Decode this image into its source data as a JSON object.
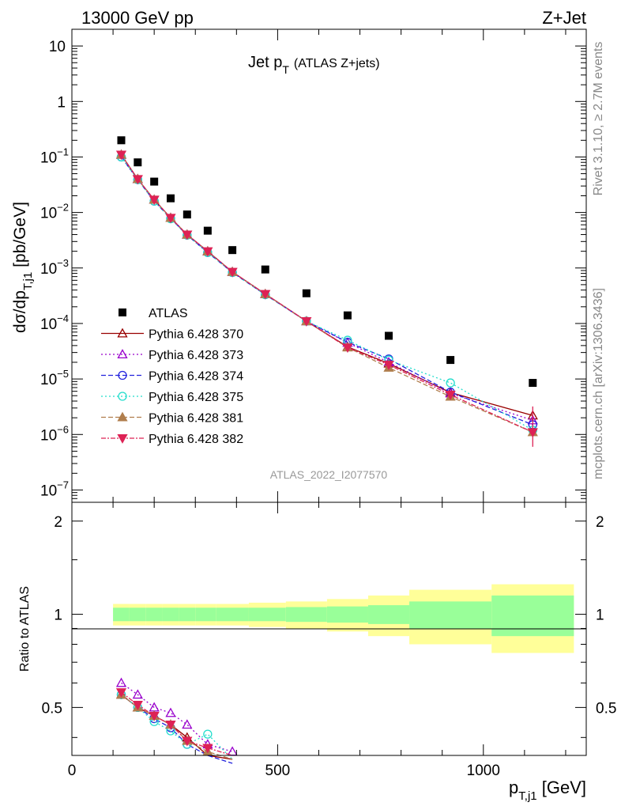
{
  "header": {
    "left": "13000 GeV pp",
    "right": "Z+Jet"
  },
  "side_labels": {
    "top": "Rivet 3.1.10, ≥ 2.7M events",
    "bottom": "mcplots.cern.ch [arXiv:1306.3436]"
  },
  "main_panel": {
    "title": "Jet p",
    "title_sub": "T",
    "title_extra": "(ATLAS Z+jets)",
    "ylabel_pre": "dσ/dp",
    "ylabel_sub": "T,j1",
    "ylabel_post": " [pb/GeV]",
    "watermark": "ATLAS_2022_I2077570",
    "y_ticks": [
      {
        "value": 10,
        "base": "10",
        "exp": ""
      },
      {
        "value": 1,
        "base": "1",
        "exp": ""
      },
      {
        "value": 0.1,
        "base": "10",
        "exp": "−1"
      },
      {
        "value": 0.01,
        "base": "10",
        "exp": "−2"
      },
      {
        "value": 0.001,
        "base": "10",
        "exp": "−3"
      },
      {
        "value": 0.0001,
        "base": "10",
        "exp": "−4"
      },
      {
        "value": 1e-05,
        "base": "10",
        "exp": "−5"
      },
      {
        "value": 1e-06,
        "base": "10",
        "exp": "−6"
      },
      {
        "value": 1e-07,
        "base": "10",
        "exp": "−7"
      }
    ]
  },
  "ratio_panel": {
    "ylabel": "Ratio to ATLAS",
    "y_ticks": [
      0.5,
      1,
      2
    ]
  },
  "x_axis": {
    "label_pre": "p",
    "label_sub": "T,j1",
    "label_post": " [GeV]",
    "ticks": [
      0,
      500,
      1000
    ]
  },
  "colors": {
    "atlas": "#000000",
    "s370": "#990000",
    "s373": "#9900cc",
    "s374": "#2222dd",
    "s375": "#22ddcc",
    "s381": "#b07e4d",
    "s382": "#dd2255",
    "band_inner": "#99ff99",
    "band_outer": "#ffff99"
  },
  "chart_data": {
    "type": "scatter",
    "xlim": [
      0,
      1250
    ],
    "ylim_main": [
      6e-08,
      20
    ],
    "ylim_ratio": [
      0.35,
      2.3
    ],
    "y_scale_main": "log",
    "y_scale_ratio": "log",
    "atlas": {
      "name": "ATLAS",
      "x": [
        120,
        160,
        200,
        240,
        280,
        330,
        390,
        470,
        570,
        670,
        770,
        920,
        1120
      ],
      "y": [
        0.2,
        0.08,
        0.036,
        0.018,
        0.0092,
        0.0047,
        0.0021,
        0.00094,
        0.00035,
        0.00014,
        6e-05,
        2.2e-05,
        8.5e-06
      ],
      "bins": [
        [
          100,
          140
        ],
        [
          140,
          180
        ],
        [
          180,
          220
        ],
        [
          220,
          260
        ],
        [
          260,
          300
        ],
        [
          300,
          350
        ],
        [
          350,
          430
        ],
        [
          430,
          520
        ],
        [
          520,
          620
        ],
        [
          620,
          720
        ],
        [
          720,
          820
        ],
        [
          820,
          1020
        ],
        [
          1020,
          1220
        ]
      ],
      "band_inner": [
        0.05,
        0.05,
        0.05,
        0.05,
        0.05,
        0.05,
        0.05,
        0.05,
        0.055,
        0.06,
        0.07,
        0.1,
        0.15
      ],
      "band_outer": [
        0.08,
        0.08,
        0.08,
        0.08,
        0.08,
        0.08,
        0.08,
        0.09,
        0.1,
        0.12,
        0.15,
        0.2,
        0.25
      ]
    },
    "series": [
      {
        "name": "Pythia 6.428 370",
        "key": "s370",
        "marker": "triangle-up-open",
        "dash": "",
        "y": [
          0.11,
          0.04,
          0.017,
          0.008,
          0.004,
          0.002,
          0.00085,
          0.00034,
          0.00011,
          3.8e-05,
          1.9e-05,
          5.7e-06,
          2.2e-06
        ],
        "ratio": [
          0.55,
          0.5,
          0.47,
          0.44,
          0.4,
          0.35,
          0.34
        ]
      },
      {
        "name": "Pythia 6.428 373",
        "key": "s373",
        "marker": "triangle-up-open",
        "dash": "2,3",
        "y": [
          0.11,
          0.04,
          0.017,
          0.008,
          0.004,
          0.002,
          0.00085,
          0.00034,
          0.00011,
          4.5e-05,
          2e-05,
          5.5e-06,
          1.8e-06
        ],
        "ratio": [
          0.6,
          0.55,
          0.5,
          0.48,
          0.44,
          0.38,
          0.36
        ]
      },
      {
        "name": "Pythia 6.428 374",
        "key": "s374",
        "marker": "circle-open",
        "dash": "6,3",
        "y": [
          0.1,
          0.039,
          0.016,
          0.0078,
          0.0039,
          0.0019,
          0.00083,
          0.00033,
          0.00011,
          4.6e-05,
          2.3e-05,
          5.8e-06,
          1.5e-06
        ],
        "ratio": [
          0.55,
          0.5,
          0.46,
          0.43,
          0.38,
          0.35,
          0.33
        ]
      },
      {
        "name": "Pythia 6.428 375",
        "key": "s375",
        "marker": "circle-open",
        "dash": "2,3",
        "y": [
          0.1,
          0.039,
          0.016,
          0.0077,
          0.0039,
          0.0019,
          0.00083,
          0.00033,
          0.00011,
          5e-05,
          2.2e-05,
          8.5e-06,
          1.2e-06
        ],
        "ratio": [
          0.55,
          0.5,
          0.45,
          0.42,
          0.38,
          0.41,
          0.34
        ]
      },
      {
        "name": "Pythia 6.428 381",
        "key": "s381",
        "marker": "triangle-up-filled",
        "dash": "6,3",
        "y": [
          0.11,
          0.04,
          0.017,
          0.008,
          0.004,
          0.002,
          0.00085,
          0.00034,
          0.00011,
          3.7e-05,
          1.6e-05,
          4.8e-06,
          1.1e-06
        ],
        "ratio": [
          0.55,
          0.5,
          0.47,
          0.44,
          0.39,
          0.36,
          0.34
        ]
      },
      {
        "name": "Pythia 6.428 382",
        "key": "s382",
        "marker": "triangle-down-filled",
        "dash": "6,2,2,2",
        "y": [
          0.11,
          0.04,
          0.017,
          0.008,
          0.004,
          0.002,
          0.00085,
          0.00034,
          0.00011,
          3.7e-05,
          1.8e-05,
          5.2e-06,
          1.1e-06
        ],
        "ratio": [
          0.56,
          0.51,
          0.47,
          0.44,
          0.39,
          0.37,
          0.35
        ]
      }
    ]
  }
}
